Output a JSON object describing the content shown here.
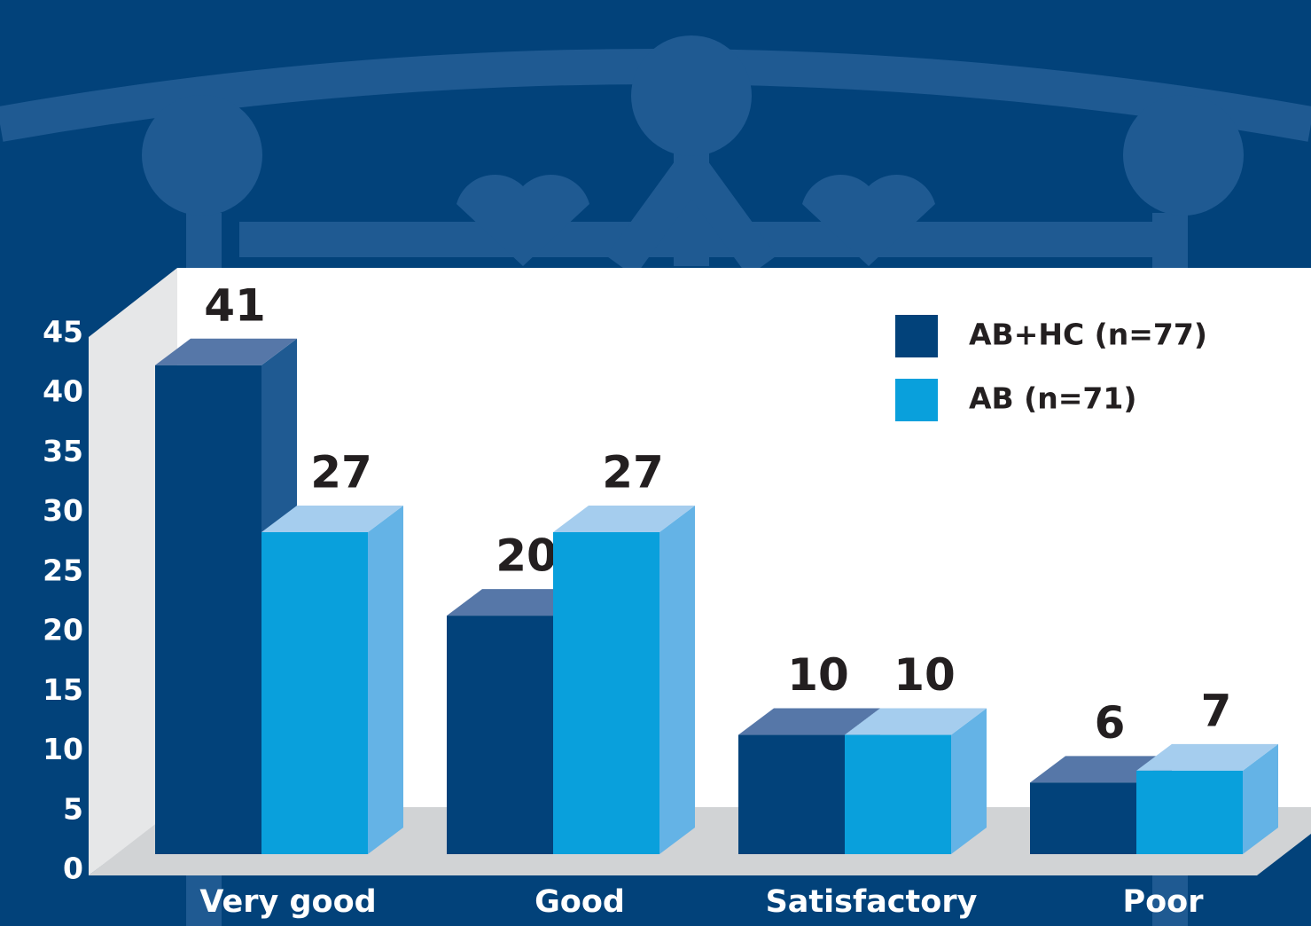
{
  "chart_data": {
    "type": "bar",
    "categories": [
      "Very good",
      "Good",
      "Satisfactory",
      "Poor"
    ],
    "series": [
      {
        "name": "AB+HC (n=77)",
        "color": "#02427a",
        "values": [
          41,
          20,
          10,
          6
        ]
      },
      {
        "name": "AB (n=71)",
        "color": "#09a0dc",
        "values": [
          27,
          27,
          10,
          7
        ]
      }
    ],
    "ylim": [
      0,
      45
    ],
    "yticks": [
      0,
      5,
      10,
      15,
      20,
      25,
      30,
      35,
      40,
      45
    ],
    "legend": "upper right"
  }
}
